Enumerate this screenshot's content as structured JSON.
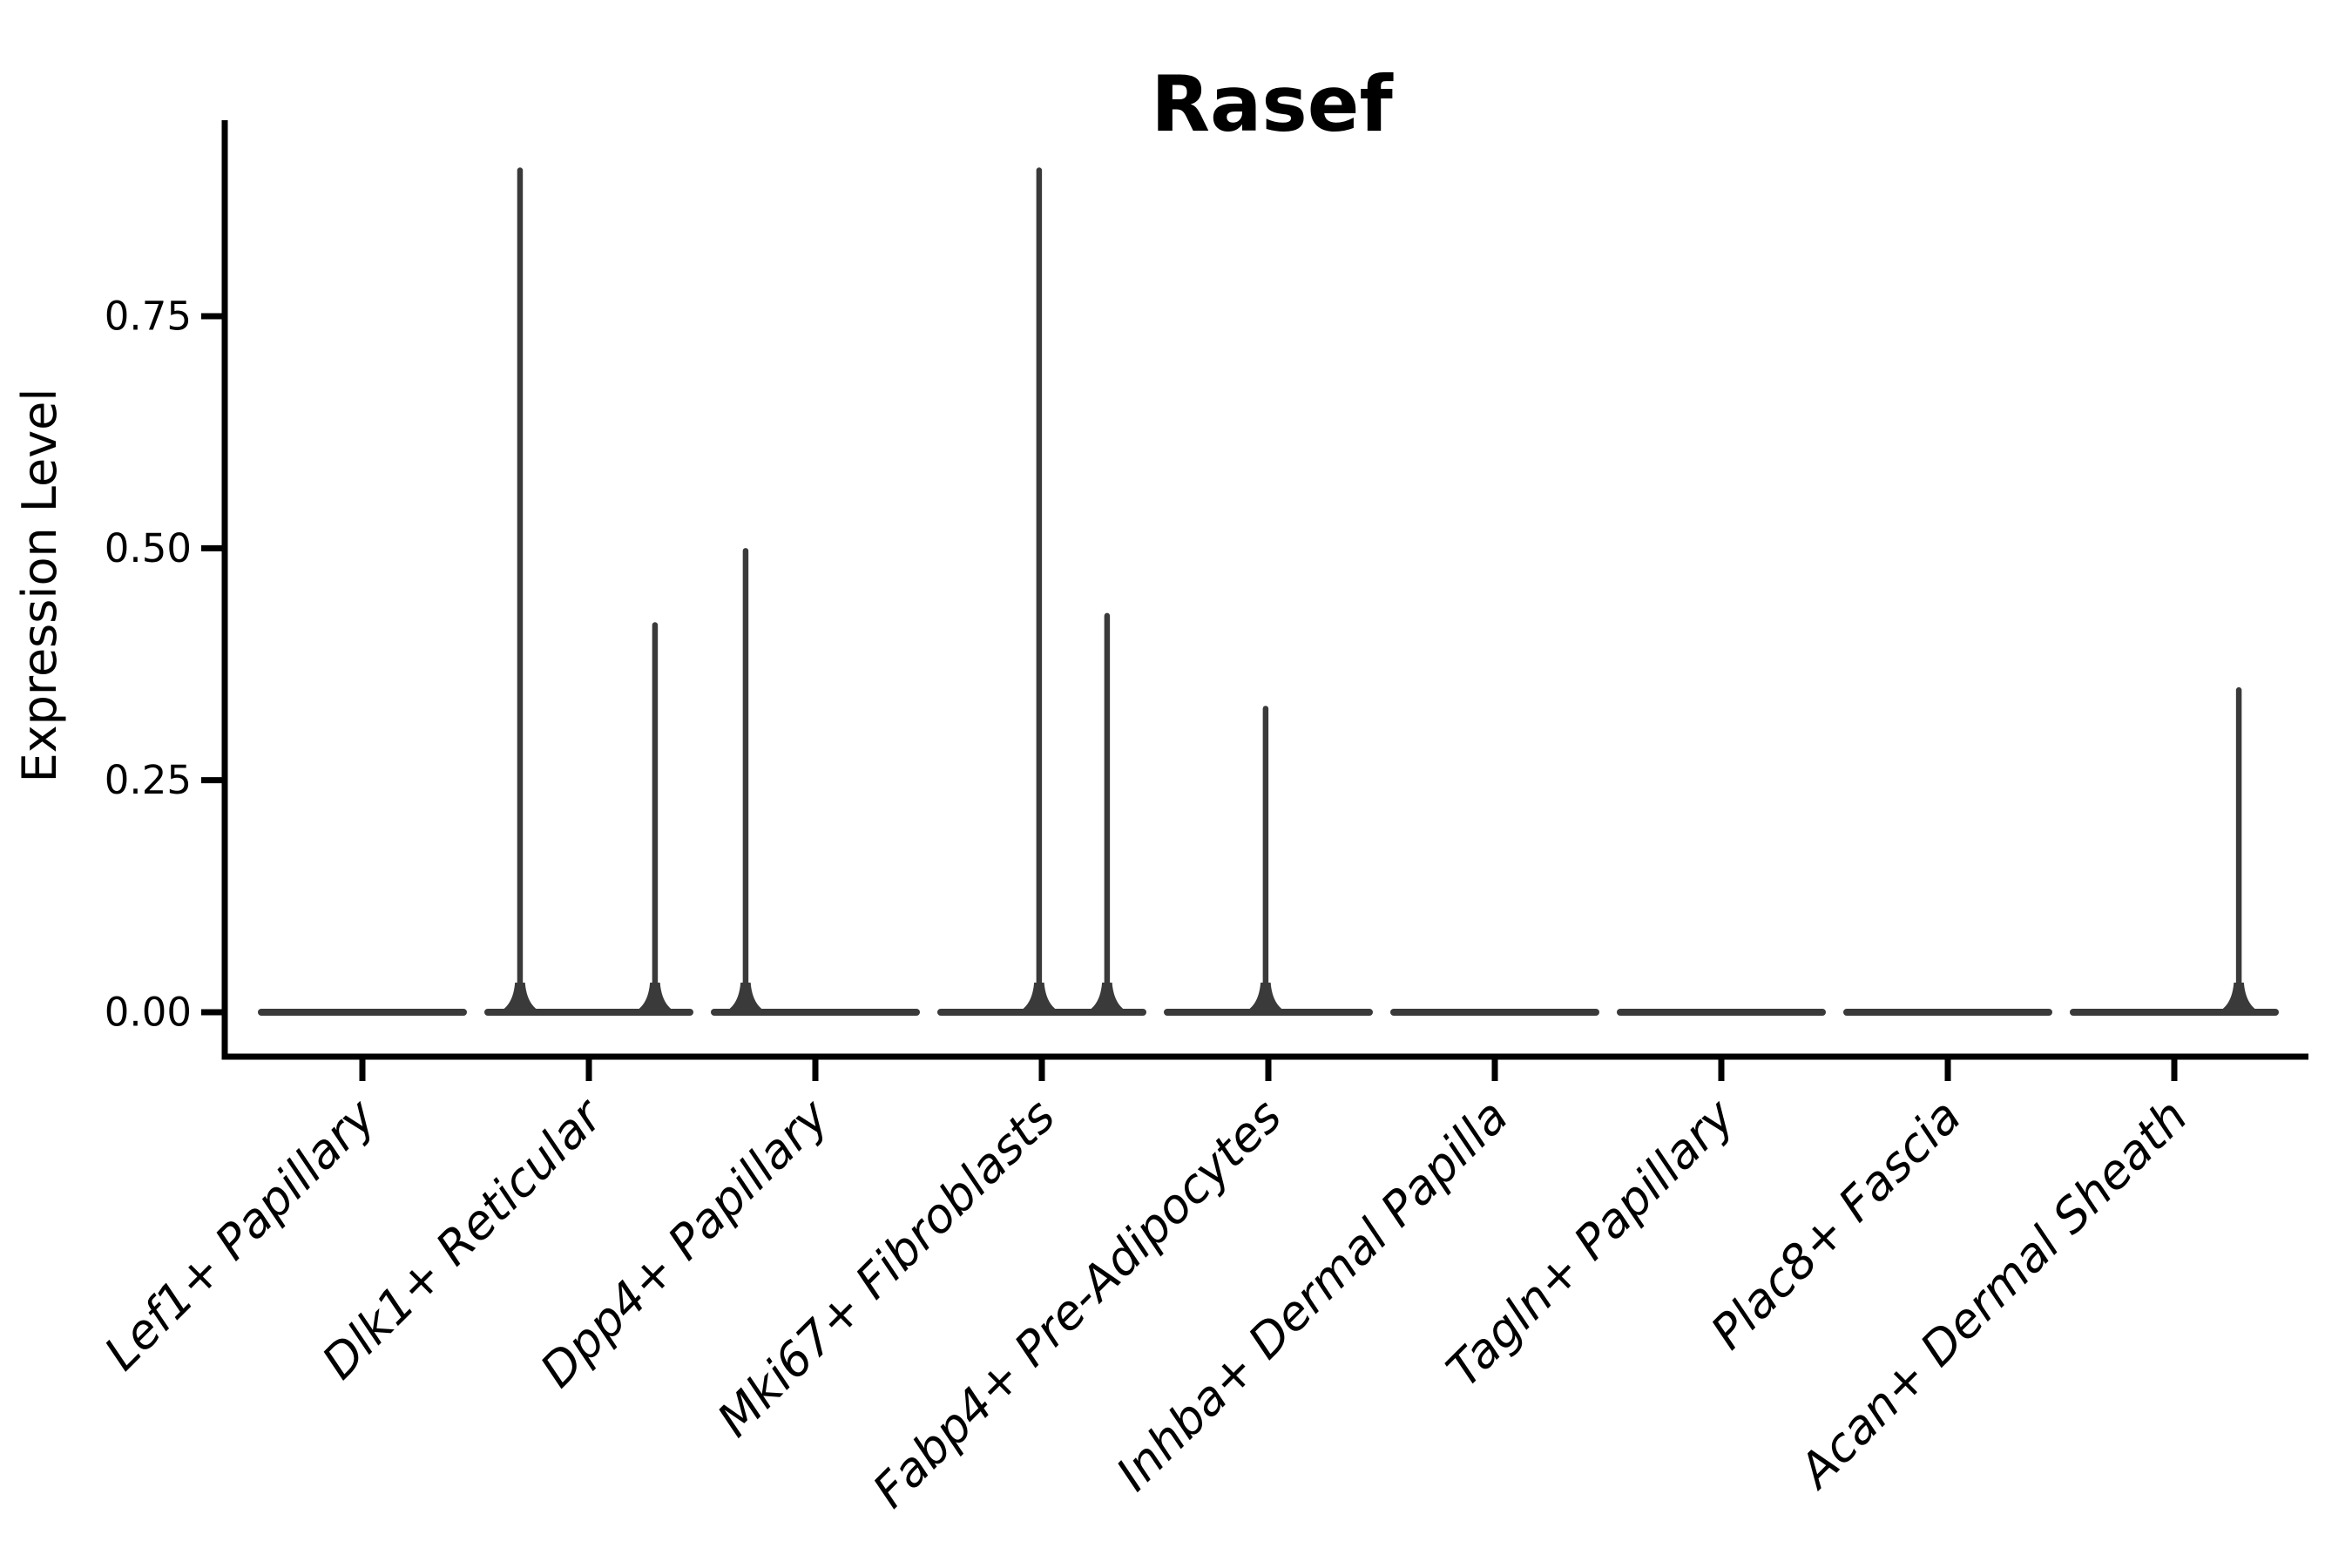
{
  "figure": {
    "background": "#ffffff"
  },
  "chart_data": {
    "type": "violin",
    "title": "Rasef",
    "title_weight": "bold",
    "xlabel": "",
    "ylabel": "Expression Level",
    "ylim": [
      -0.046,
      0.96
    ],
    "grid": false,
    "legend": null,
    "yticks": [
      {
        "value": 0.0,
        "label": "0.00"
      },
      {
        "value": 0.25,
        "label": "0.25"
      },
      {
        "value": 0.5,
        "label": "0.50"
      },
      {
        "value": 0.75,
        "label": "0.75"
      }
    ],
    "categories": [
      "Lef1+ Papillary",
      "Dlk1+ Reticular",
      "Dpp4+ Papillary",
      "Mki67+ Fibroblasts",
      "Fabp4+ Pre-Adipocytes",
      "Inhba+ Dermal Papilla",
      "Tagln+ Papillary",
      "Plac8+ Fascia",
      "Acan+ Dermal Sheath"
    ],
    "violins": [
      {
        "category": "Lef1+ Papillary",
        "baseline_value": 0.0,
        "spikes": []
      },
      {
        "category": "Dlk1+ Reticular",
        "baseline_value": 0.0,
        "spikes": [
          {
            "offset_frac": -0.304,
            "value": 0.91
          },
          {
            "offset_frac": 0.292,
            "value": 0.42
          }
        ]
      },
      {
        "category": "Dpp4+ Papillary",
        "baseline_value": 0.0,
        "spikes": [
          {
            "offset_frac": -0.308,
            "value": 0.5
          }
        ]
      },
      {
        "category": "Mki67+ Fibroblasts",
        "baseline_value": 0.0,
        "spikes": [
          {
            "offset_frac": -0.012,
            "value": 0.91
          },
          {
            "offset_frac": 0.288,
            "value": 0.43
          }
        ]
      },
      {
        "category": "Fabp4+ Pre-Adipocytes",
        "baseline_value": 0.0,
        "spikes": [
          {
            "offset_frac": -0.012,
            "value": 0.33
          }
        ]
      },
      {
        "category": "Inhba+ Dermal Papilla",
        "baseline_value": 0.0,
        "spikes": []
      },
      {
        "category": "Tagln+ Papillary",
        "baseline_value": 0.0,
        "spikes": []
      },
      {
        "category": "Plac8+ Fascia",
        "baseline_value": 0.0,
        "spikes": []
      },
      {
        "category": "Acan+ Dermal Sheath",
        "baseline_value": 0.0,
        "spikes": [
          {
            "offset_frac": 0.285,
            "value": 0.35
          }
        ]
      }
    ],
    "colors": {
      "axis": "#000000",
      "text": "#000000",
      "violin": "#3a3a3a",
      "background": "#ffffff"
    },
    "notes": "Expression is concentrated at 0 in every group; thin vertical spikes mark rare cells up to the maximum expression value."
  }
}
